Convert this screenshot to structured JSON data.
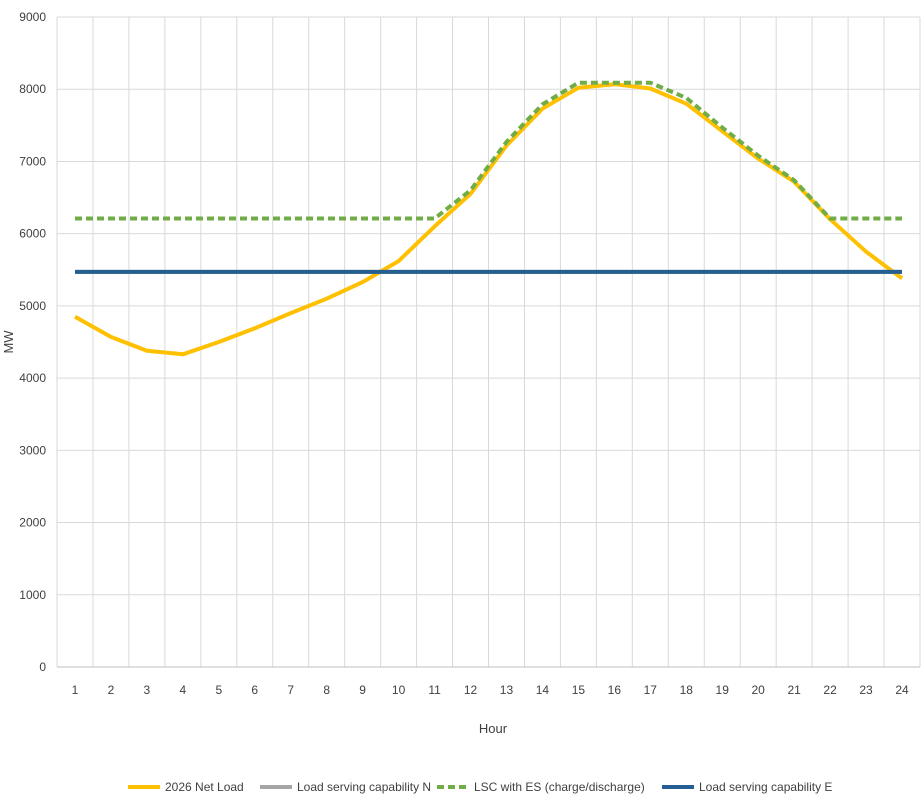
{
  "chart_data": {
    "type": "line",
    "title": "",
    "xlabel": "Hour",
    "ylabel": "MW",
    "categories": [
      "1",
      "2",
      "3",
      "4",
      "5",
      "6",
      "7",
      "8",
      "9",
      "10",
      "11",
      "12",
      "13",
      "14",
      "15",
      "16",
      "17",
      "18",
      "19",
      "20",
      "21",
      "22",
      "23",
      "24"
    ],
    "ylim": [
      0,
      9000
    ],
    "yticks": [
      0,
      1000,
      2000,
      3000,
      4000,
      5000,
      6000,
      7000,
      8000,
      9000
    ],
    "grid": true,
    "legend_position": "bottom",
    "series": [
      {
        "name": "2026 Net Load",
        "color": "#FFC000",
        "style": "solid",
        "values": [
          4850,
          4570,
          4380,
          4330,
          4500,
          4690,
          4900,
          5100,
          5330,
          5620,
          6100,
          6550,
          7220,
          7730,
          8020,
          8070,
          8010,
          7800,
          7420,
          7040,
          6720,
          6200,
          5750,
          5380
        ]
      },
      {
        "name": "Load serving capability N",
        "color": "#A5A5A5",
        "style": "solid",
        "values": [
          5470,
          5470,
          5470,
          5470,
          5470,
          5470,
          5470,
          5470,
          5470,
          5470,
          5470,
          5470,
          5470,
          5470,
          5470,
          5470,
          5470,
          5470,
          5470,
          5470,
          5470,
          5470,
          5470,
          5470
        ]
      },
      {
        "name": "LSC with ES (charge/discharge)",
        "color": "#70AD47",
        "style": "dashed",
        "values": [
          6210,
          6210,
          6210,
          6210,
          6210,
          6210,
          6210,
          6210,
          6210,
          6210,
          6210,
          6600,
          7270,
          7790,
          8090,
          8090,
          8090,
          7880,
          7470,
          7080,
          6740,
          6210,
          6210,
          6210
        ]
      },
      {
        "name": "Load serving capability E",
        "color": "#255E91",
        "style": "solid",
        "values": [
          5470,
          5470,
          5470,
          5470,
          5470,
          5470,
          5470,
          5470,
          5470,
          5470,
          5470,
          5470,
          5470,
          5470,
          5470,
          5470,
          5470,
          5470,
          5470,
          5470,
          5470,
          5470,
          5470,
          5470
        ]
      }
    ]
  }
}
